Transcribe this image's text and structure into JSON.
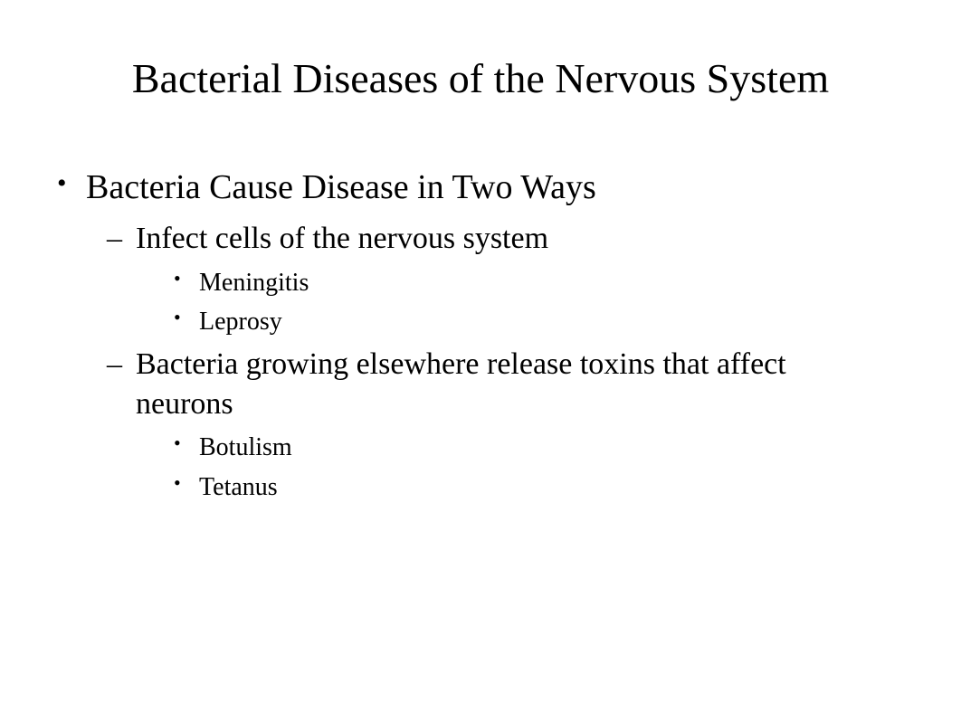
{
  "slide": {
    "title": "Bacterial Diseases of the Nervous System",
    "background_color": "#ffffff",
    "text_color": "#000000",
    "font_family": "Times New Roman",
    "title_fontsize": 46,
    "bullets": {
      "level1": [
        {
          "text": "Bacteria Cause Disease in Two Ways",
          "fontsize": 38,
          "children": [
            {
              "text": "Infect cells of the nervous system",
              "fontsize": 34,
              "children": [
                {
                  "text": "Meningitis",
                  "fontsize": 28
                },
                {
                  "text": "Leprosy",
                  "fontsize": 28
                }
              ]
            },
            {
              "text": "Bacteria growing elsewhere release toxins that affect neurons",
              "fontsize": 34,
              "children": [
                {
                  "text": "Botulism",
                  "fontsize": 28
                },
                {
                  "text": "Tetanus",
                  "fontsize": 28
                }
              ]
            }
          ]
        }
      ]
    }
  }
}
